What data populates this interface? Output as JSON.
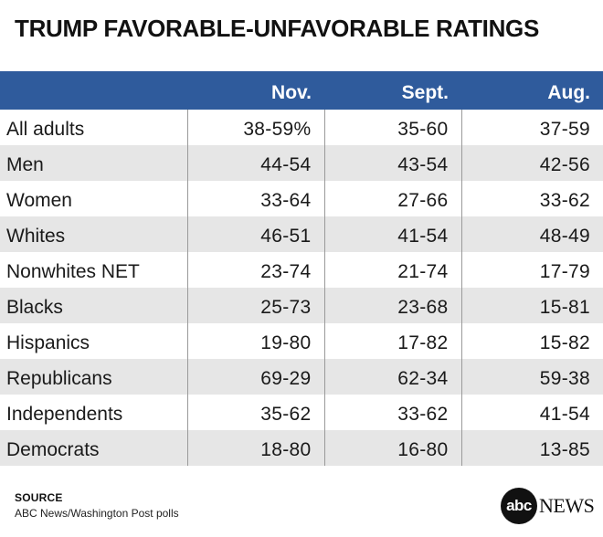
{
  "title": "TRUMP FAVORABLE-UNFAVORABLE RATINGS",
  "colors": {
    "header_bg": "#2f5b9c",
    "stripe": "#e6e6e6"
  },
  "chart_data": {
    "type": "table",
    "title": "TRUMP FAVORABLE-UNFAVORABLE RATINGS",
    "columns": [
      "",
      "Nov.",
      "Sept.",
      "Aug."
    ],
    "rows": [
      [
        "All adults",
        "38-59%",
        "35-60",
        "37-59"
      ],
      [
        "Men",
        "44-54",
        "43-54",
        "42-56"
      ],
      [
        "Women",
        "33-64",
        "27-66",
        "33-62"
      ],
      [
        "Whites",
        "46-51",
        "41-54",
        "48-49"
      ],
      [
        "Nonwhites NET",
        "23-74",
        "21-74",
        "17-79"
      ],
      [
        "Blacks",
        "25-73",
        "23-68",
        "15-81"
      ],
      [
        "Hispanics",
        "19-80",
        "17-82",
        "15-82"
      ],
      [
        "Republicans",
        "69-29",
        "62-34",
        "59-38"
      ],
      [
        "Independents",
        "35-62",
        "33-62",
        "41-54"
      ],
      [
        "Democrats",
        "18-80",
        "16-80",
        "13-85"
      ]
    ]
  },
  "source": {
    "label": "SOURCE",
    "text": "ABC News/Washington Post polls"
  },
  "logo": {
    "circle_text": "abc",
    "word": "NEWS"
  }
}
